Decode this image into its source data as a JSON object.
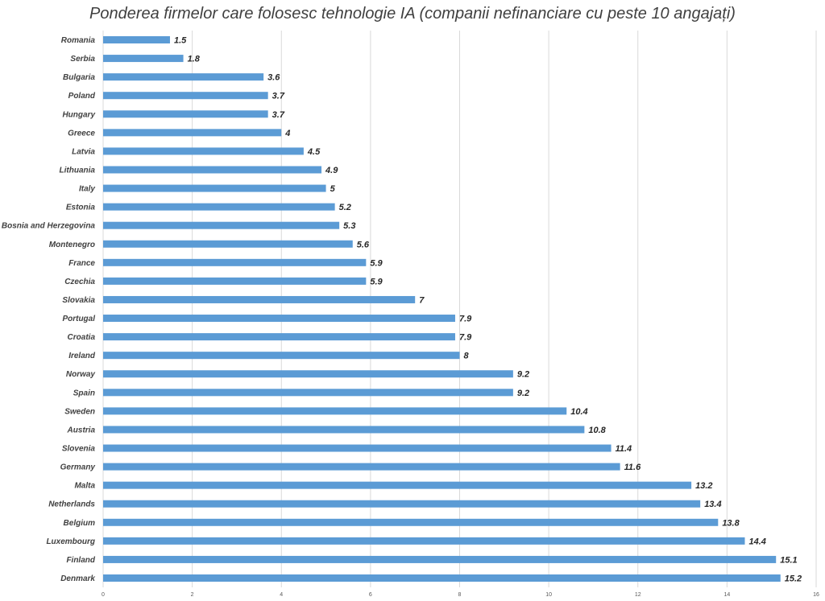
{
  "chart_data": {
    "type": "bar",
    "orientation": "horizontal",
    "title": "Ponderea firmelor care folosesc tehnologie IA (companii nefinanciare cu peste 10 angajați)",
    "xlabel": "",
    "ylabel": "",
    "categories": [
      "Romania",
      "Serbia",
      "Bulgaria",
      "Poland",
      "Hungary",
      "Greece",
      "Latvia",
      "Lithuania",
      "Italy",
      "Estonia",
      "Bosnia and Herzegovina",
      "Montenegro",
      "France",
      "Czechia",
      "Slovakia",
      "Portugal",
      "Croatia",
      "Ireland",
      "Norway",
      "Spain",
      "Sweden",
      "Austria",
      "Slovenia",
      "Germany",
      "Malta",
      "Netherlands",
      "Belgium",
      "Luxembourg",
      "Finland",
      "Denmark"
    ],
    "values": [
      1.5,
      1.8,
      3.6,
      3.7,
      3.7,
      4,
      4.5,
      4.9,
      5,
      5.2,
      5.3,
      5.6,
      5.9,
      5.9,
      7,
      7.9,
      7.9,
      8,
      9.2,
      9.2,
      10.4,
      10.8,
      11.4,
      11.6,
      13.2,
      13.4,
      13.8,
      14.4,
      15.1,
      15.2
    ],
    "value_labels": [
      "1.5",
      "1.8",
      "3.6",
      "3.7",
      "3.7",
      "4",
      "4.5",
      "4.9",
      "5",
      "5.2",
      "5.3",
      "5.6",
      "5.9",
      "5.9",
      "7",
      "7.9",
      "7.9",
      "8",
      "9.2",
      "9.2",
      "10.4",
      "10.8",
      "11.4",
      "11.6",
      "13.2",
      "13.4",
      "13.8",
      "14.4",
      "15.1",
      "15.2"
    ],
    "xlim": [
      0,
      16
    ],
    "x_ticks": [
      "0",
      "2",
      "4",
      "6",
      "8",
      "10",
      "12",
      "14",
      "16"
    ],
    "grid": true,
    "legend": "none",
    "bar_color": "#5b9bd5"
  }
}
